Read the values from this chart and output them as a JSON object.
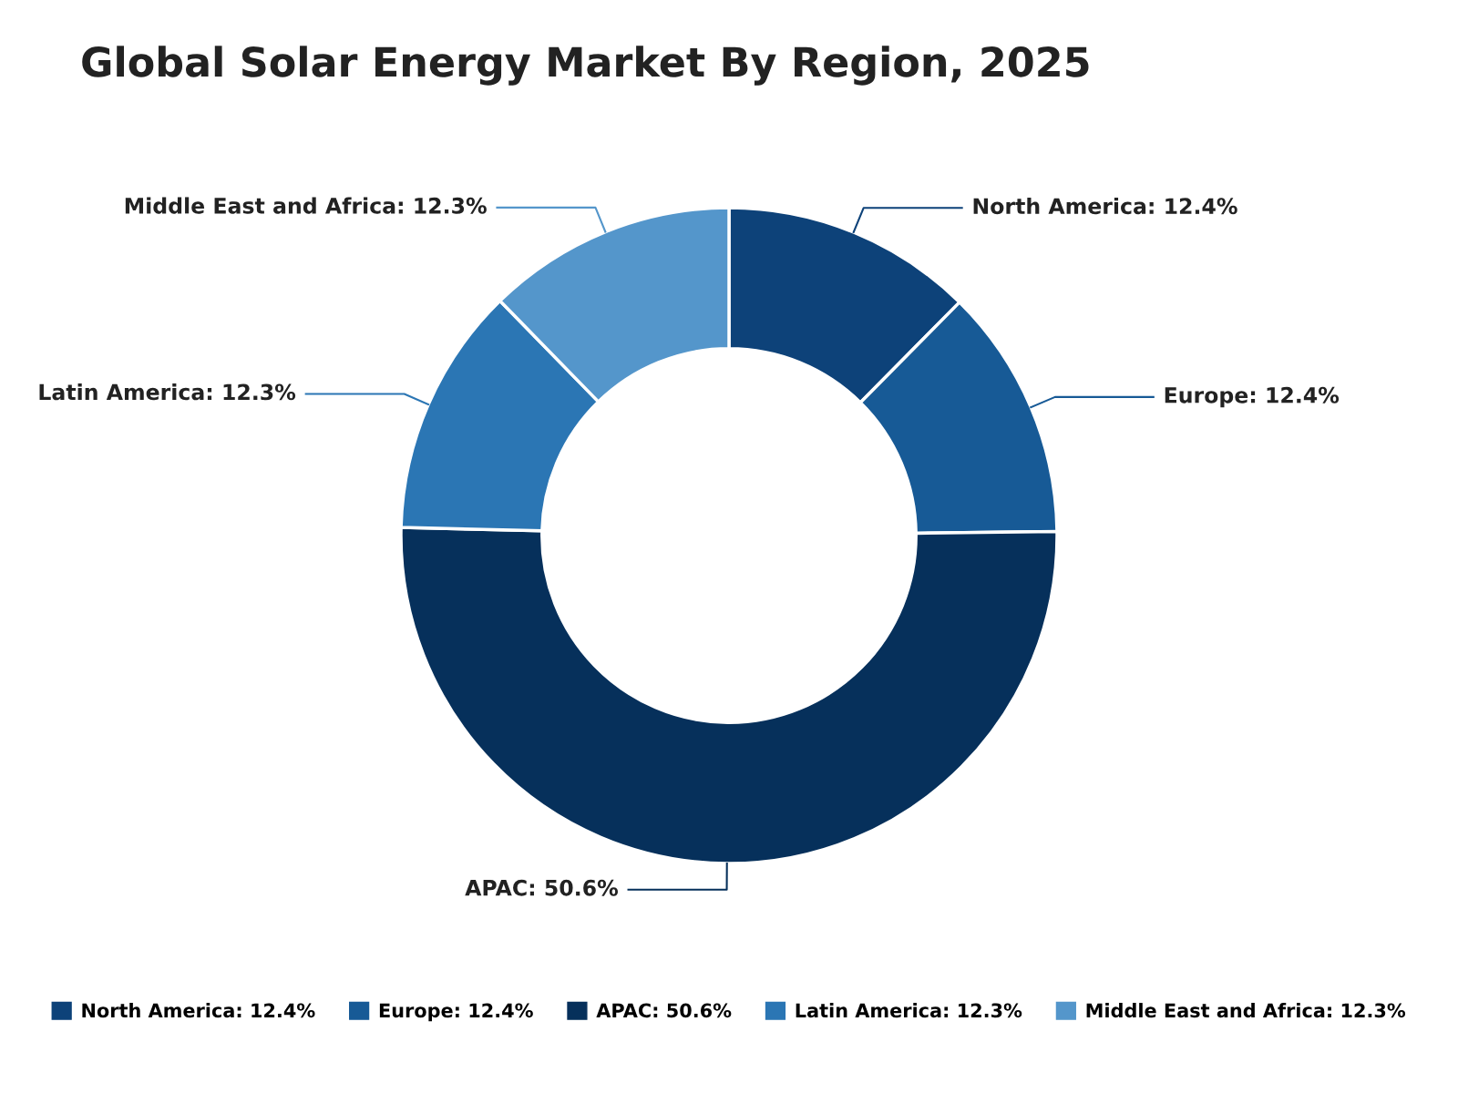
{
  "chart_data": {
    "type": "donut",
    "title": "Global Solar Energy Market By Region, 2025",
    "categories": [
      "North America: 12.4%",
      "Europe: 12.4%",
      "APAC: 50.6%",
      "Latin America: 12.3%",
      "Middle East and Africa: 12.3%"
    ],
    "values": [
      12.4,
      12.4,
      50.6,
      12.3,
      12.3
    ],
    "colors": [
      "#0d4279",
      "#175a96",
      "#06305b",
      "#2b76b4",
      "#5496cb"
    ],
    "legend": "bottom"
  }
}
